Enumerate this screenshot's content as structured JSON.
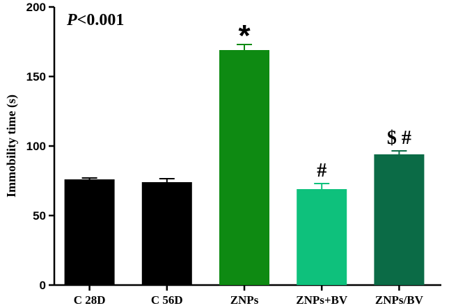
{
  "chart_data": {
    "type": "bar",
    "title": "",
    "xlabel": "",
    "ylabel": "Immobility time (s)",
    "ylim": [
      0,
      200
    ],
    "yticks": [
      0,
      50,
      100,
      150,
      200
    ],
    "grid": false,
    "legend": "none",
    "categories": [
      "C 28D",
      "C 56D",
      "ZNPs",
      "ZNPs+BV",
      "ZNPs/BV"
    ],
    "values": [
      76,
      74,
      169,
      69,
      94
    ],
    "errors": [
      1,
      2.5,
      4,
      4,
      2.5
    ],
    "colors": [
      "#000000",
      "#000000",
      "#0e8a12",
      "#0ec17c",
      "#0b6b46"
    ],
    "error_colors": [
      "#000000",
      "#000000",
      "#0e8a12",
      "#0ec17c",
      "#0b6b46"
    ],
    "annotations": [
      "",
      "",
      "*",
      "#",
      "$ #"
    ],
    "p_value": {
      "prefix": "P",
      "rest": "<0.001"
    }
  }
}
